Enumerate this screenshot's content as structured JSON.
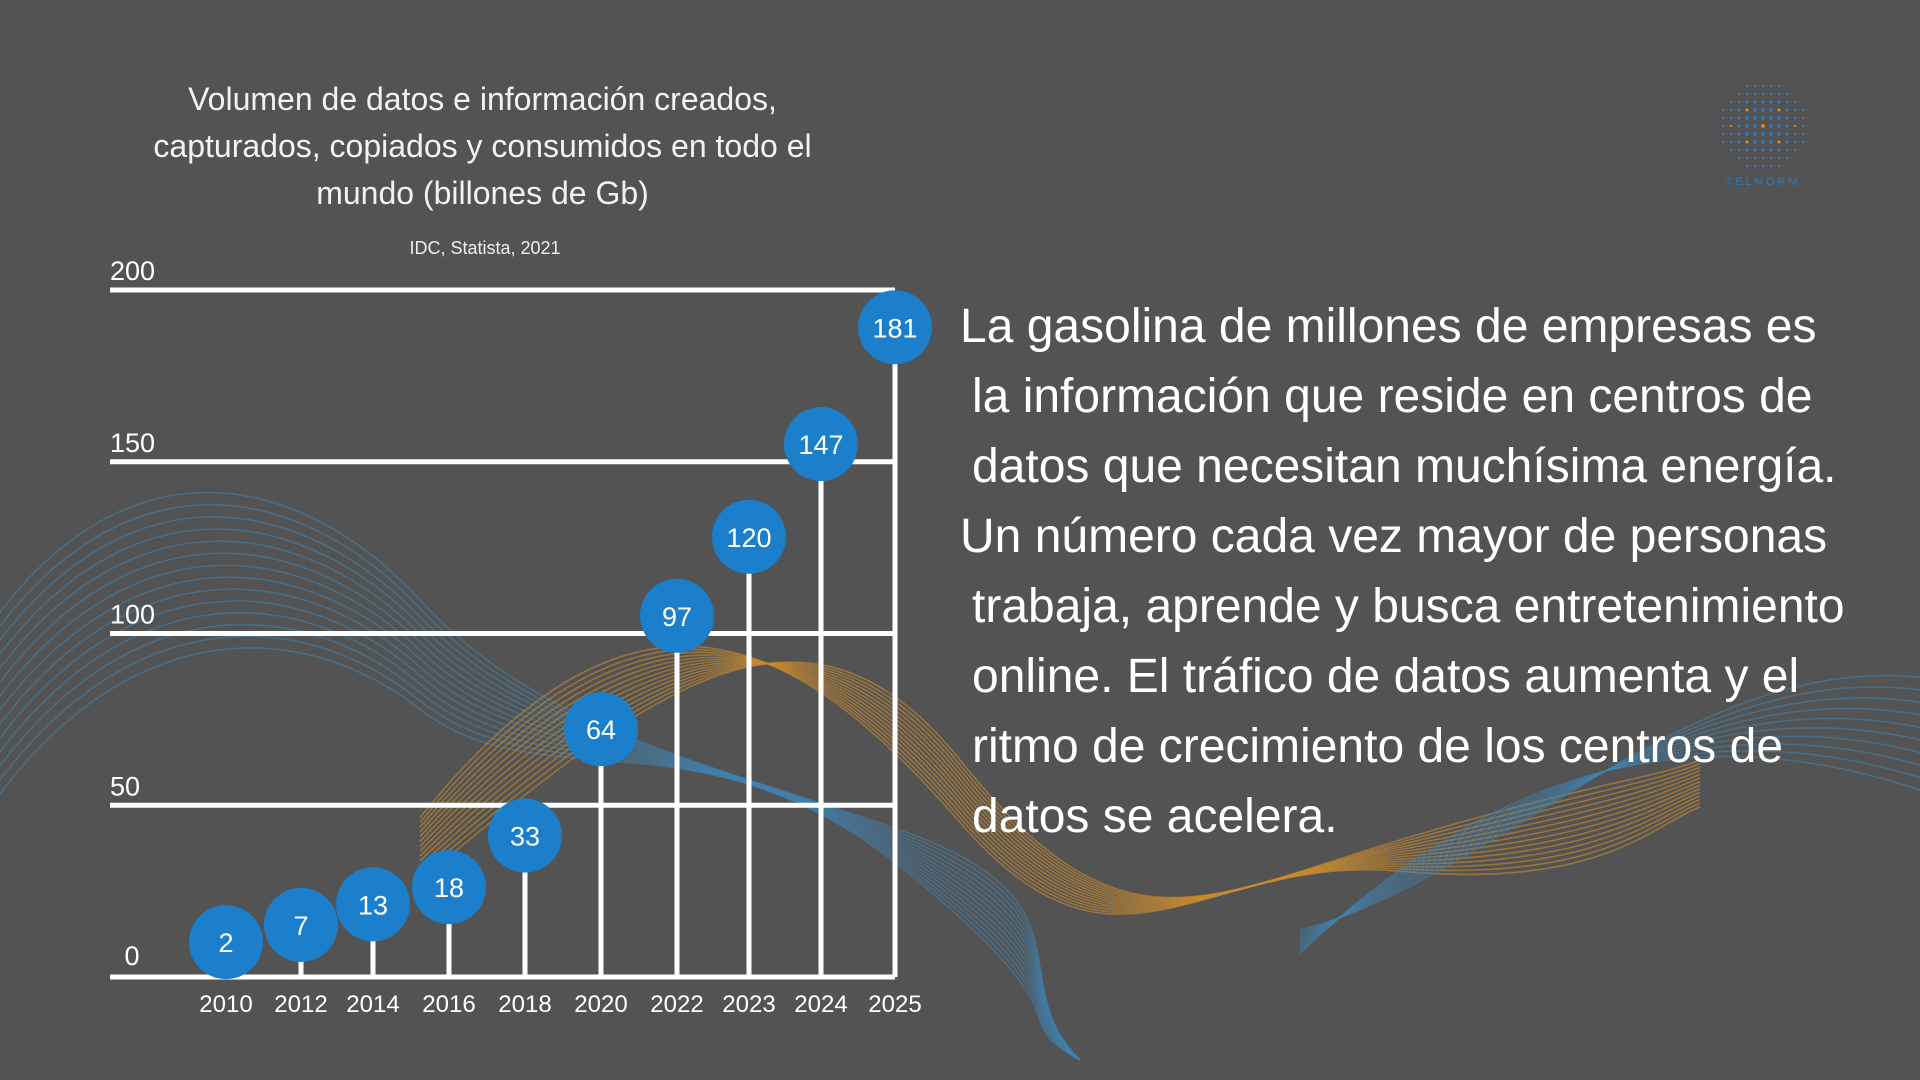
{
  "chart_data": {
    "type": "lollipop",
    "title": "Volumen de datos e información creados, capturados, copiados y consumidos en todo el mundo (billones de Gb)",
    "source": "IDC, Statista, 2021",
    "categories": [
      "2010",
      "2012",
      "2014",
      "2016",
      "2018",
      "2020",
      "2022",
      "2023",
      "2024",
      "2025"
    ],
    "values": [
      2,
      7,
      13,
      18,
      33,
      64,
      97,
      120,
      147,
      181
    ],
    "value_labels": [
      "2",
      "7",
      "13",
      "18",
      "33",
      "64",
      "97",
      "120",
      "147",
      "181"
    ],
    "y_ticks": [
      0,
      50,
      100,
      150,
      200
    ],
    "y_tick_labels": [
      "0",
      "50",
      "100",
      "150",
      "200"
    ],
    "ylim": [
      0,
      200
    ],
    "grid": true,
    "legend": "none",
    "colors": {
      "bubble": "#1b7fcb",
      "lines": "#ffffff"
    }
  },
  "body": {
    "paragraph_1": "La gasolina de millones de empresas es la información que reside en centros de datos que necesitan muchísima energía.",
    "paragraph_2": "Un número cada vez mayor de personas trabaja, aprende y busca entretenimiento online. El tráfico de datos aumenta y el ritmo de crecimiento de los centros de datos se acelera."
  },
  "logo": {
    "text": "TELNORM",
    "icon": "dot-grid-logo-icon",
    "colors": [
      "#2a7fd0",
      "#f0901e"
    ]
  },
  "colors": {
    "background": "#535353",
    "wave_blue": "#3f83b3",
    "wave_orange": "#c98a2e"
  }
}
